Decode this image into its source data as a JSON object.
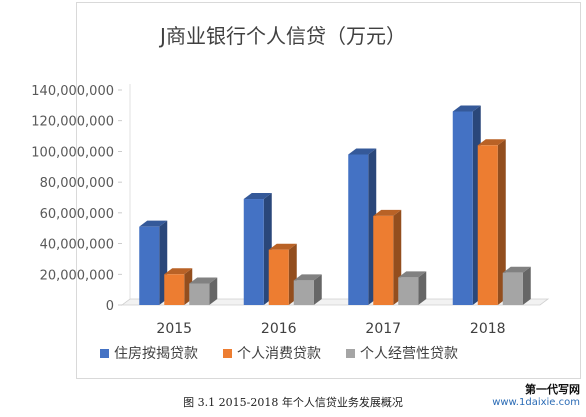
{
  "chart_data": {
    "type": "bar",
    "title": "J商业银行个人信贷（万元）",
    "categories": [
      "2015",
      "2016",
      "2017",
      "2018"
    ],
    "series": [
      {
        "name": "住房按揭贷款",
        "color": "#4472c4",
        "values": [
          51000000,
          69000000,
          98000000,
          126000000
        ]
      },
      {
        "name": "个人消费贷款",
        "color": "#ed7d31",
        "values": [
          20000000,
          36000000,
          58000000,
          104000000
        ]
      },
      {
        "name": "个人经营性贷款",
        "color": "#a5a5a5",
        "values": [
          14000000,
          16000000,
          18000000,
          21000000
        ]
      }
    ],
    "y_ticks": [
      "0",
      "20,000,000",
      "40,000,000",
      "60,000,000",
      "80,000,000",
      "100,000,000",
      "120,000,000",
      "140,000,000"
    ],
    "ylim": [
      0,
      140000000
    ],
    "grid": false,
    "legend": "bottom",
    "style": "3d-clustered-column"
  },
  "caption": "图 3.1  2015-2018 年个人信贷业务发展概况",
  "watermark": {
    "line1": "第一代写网",
    "line2": "www.1daixie.com"
  }
}
